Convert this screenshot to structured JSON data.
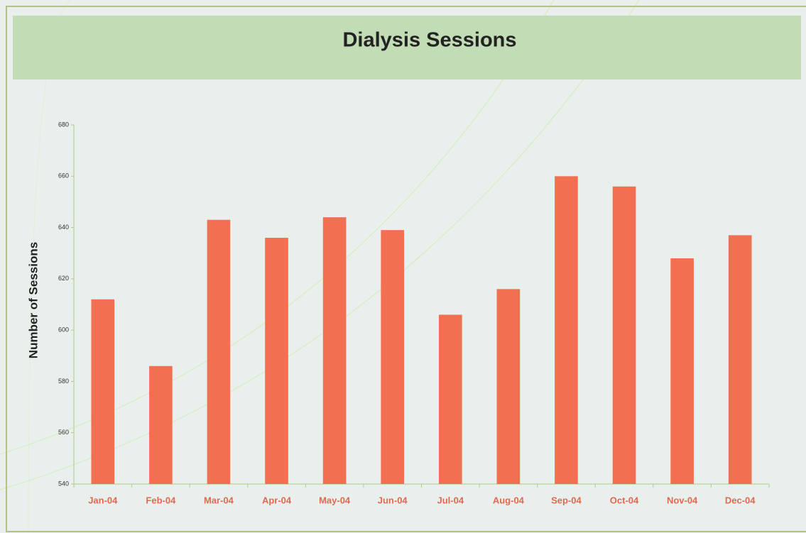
{
  "chart_data": {
    "type": "bar",
    "title": "Dialysis Sessions",
    "ylabel": "Number of Sessions",
    "categories": [
      "Jan-04",
      "Feb-04",
      "Mar-04",
      "Apr-04",
      "May-04",
      "Jun-04",
      "Jul-04",
      "Aug-04",
      "Sep-04",
      "Oct-04",
      "Nov-04",
      "Dec-04"
    ],
    "values": [
      612,
      586,
      643,
      636,
      644,
      639,
      606,
      616,
      660,
      656,
      628,
      637
    ],
    "color": "#f27052",
    "ylim": [
      540,
      680
    ],
    "yticks": [
      540,
      560,
      580,
      600,
      620,
      640,
      660,
      680
    ],
    "grid": false
  }
}
